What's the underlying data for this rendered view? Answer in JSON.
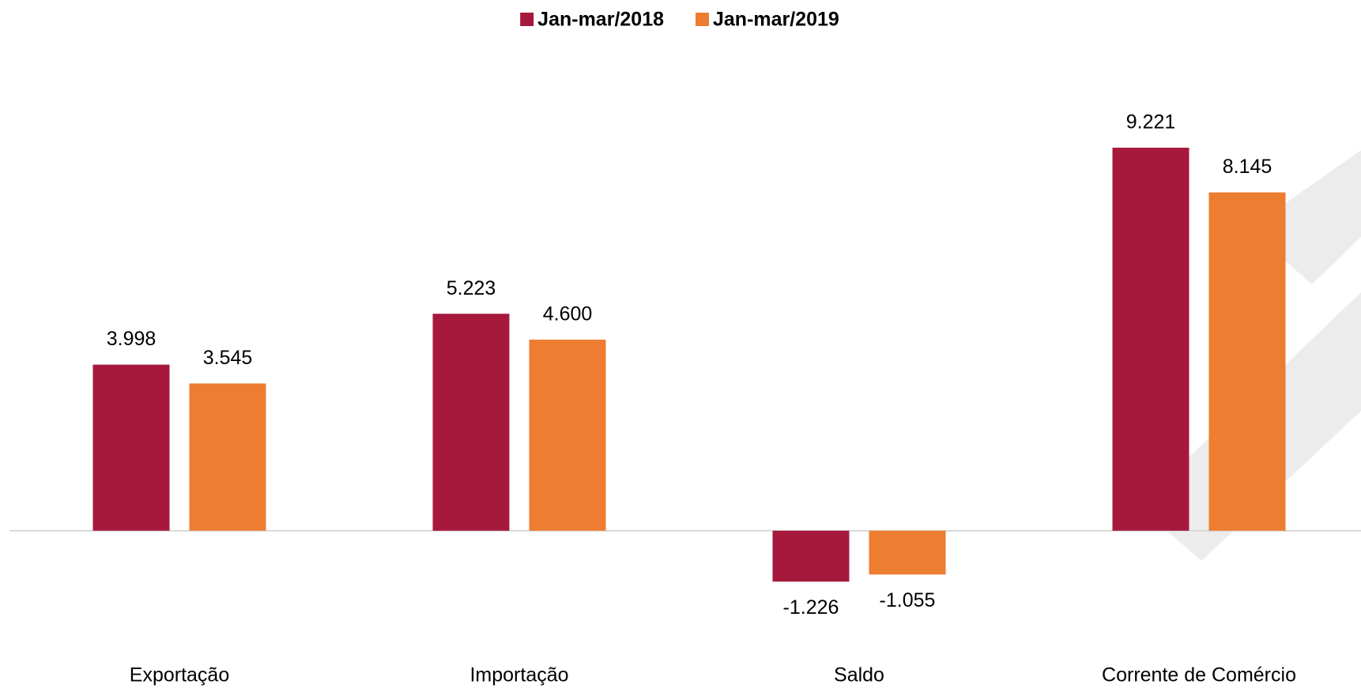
{
  "chart_data": {
    "type": "bar",
    "categories": [
      "Exportação",
      "Importação",
      "Saldo",
      "Corrente de Comércio"
    ],
    "series": [
      {
        "name": "Jan-mar/2018",
        "color": "#a6193c",
        "values": [
          3998,
          5223,
          -1226,
          9221
        ],
        "value_labels": [
          "3.998",
          "5.223",
          "-1.226",
          "9.221"
        ]
      },
      {
        "name": "Jan-mar/2019",
        "color": "#ed7d31",
        "values": [
          3545,
          4600,
          -1055,
          8145
        ],
        "value_labels": [
          "3.545",
          "4.600",
          "-1.055",
          "8.145"
        ]
      }
    ],
    "ylim": [
      -2000,
      10000
    ],
    "legend": "top"
  }
}
